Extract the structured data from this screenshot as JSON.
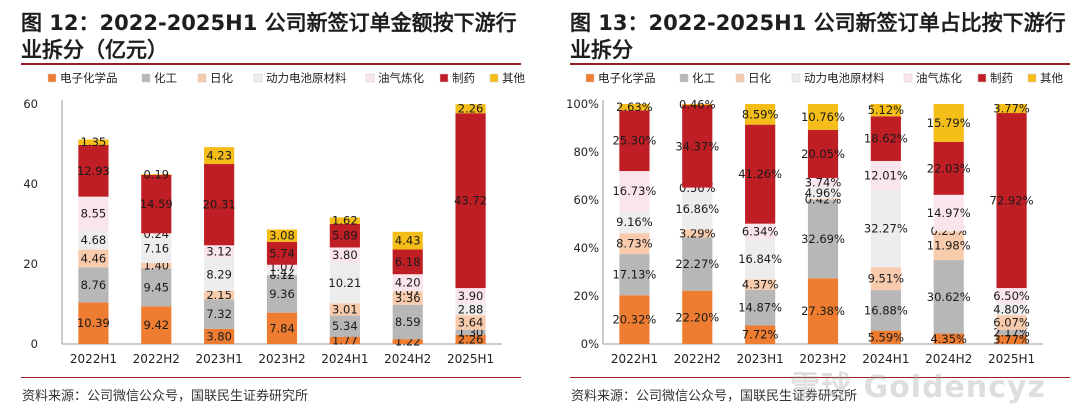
{
  "panels": [
    {
      "title": "图 12：2022-2025H1 公司新签订单金额按下游行业拆分（亿元）",
      "source": "资料来源：公司微信公众号，国联民生证券研究所"
    },
    {
      "title": "图 13：2022-2025H1 公司新签订单占比按下游行业拆分",
      "source": "资料来源：公司微信公众号，国联民生证券研究所"
    }
  ],
  "watermark": "雪球 Goldencyz",
  "colors": {
    "电子化学品": "#ee7d31",
    "化工": "#b7b7b7",
    "日化": "#f8cbad",
    "动力电池原材料": "#ededed",
    "油气炼化": "#fbe5ec",
    "制药": "#be1e24",
    "其他": "#f4bd17"
  },
  "chart_data": [
    {
      "type": "bar",
      "stacked": true,
      "title": "图 12：2022-2025H1 公司新签订单金额按下游行业拆分（亿元）",
      "categories": [
        "2022H1",
        "2022H2",
        "2023H1",
        "2023H2",
        "2024H1",
        "2024H2",
        "2025H1"
      ],
      "series": [
        {
          "name": "电子化学品",
          "values": [
            10.39,
            9.42,
            3.8,
            7.84,
            1.77,
            1.22,
            2.26
          ]
        },
        {
          "name": "化工",
          "values": [
            8.76,
            9.45,
            7.32,
            9.36,
            5.34,
            8.59,
            1.3
          ]
        },
        {
          "name": "日化",
          "values": [
            4.46,
            1.4,
            2.15,
            0.12,
            3.01,
            3.36,
            3.64
          ]
        },
        {
          "name": "动力电池原材料",
          "values": [
            4.68,
            7.16,
            8.29,
            1.42,
            10.21,
            0.07,
            2.88
          ]
        },
        {
          "name": "油气炼化",
          "values": [
            8.55,
            0.24,
            3.12,
            1.07,
            3.8,
            4.2,
            3.9
          ]
        },
        {
          "name": "制药",
          "values": [
            12.93,
            14.59,
            20.31,
            5.74,
            5.89,
            6.18,
            43.72
          ]
        },
        {
          "name": "其他",
          "values": [
            1.35,
            0.19,
            4.23,
            3.08,
            1.62,
            4.43,
            2.26
          ]
        }
      ],
      "ylim": [
        0,
        60
      ],
      "yticks": [
        0,
        20,
        40,
        60
      ],
      "xlabel": "",
      "ylabel": "",
      "legend": "top"
    },
    {
      "type": "bar",
      "stacked": true,
      "percent": true,
      "title": "图 13：2022-2025H1 公司新签订单占比按下游行业拆分",
      "categories": [
        "2022H1",
        "2022H2",
        "2023H1",
        "2023H2",
        "2024H1",
        "2024H2",
        "2025H1"
      ],
      "series": [
        {
          "name": "电子化学品",
          "values": [
            20.32,
            22.2,
            7.72,
            27.38,
            5.59,
            4.35,
            3.77
          ]
        },
        {
          "name": "化工",
          "values": [
            17.13,
            22.27,
            14.87,
            32.69,
            16.88,
            30.62,
            2.17
          ]
        },
        {
          "name": "日化",
          "values": [
            8.73,
            3.29,
            4.37,
            0.42,
            9.51,
            11.98,
            6.07
          ]
        },
        {
          "name": "动力电池原材料",
          "values": [
            9.16,
            16.86,
            16.84,
            4.96,
            32.27,
            0.25,
            4.8
          ]
        },
        {
          "name": "油气炼化",
          "values": [
            16.73,
            0.56,
            6.34,
            3.74,
            12.01,
            14.97,
            6.5
          ]
        },
        {
          "name": "制药",
          "values": [
            25.3,
            34.37,
            41.26,
            20.05,
            18.62,
            22.03,
            72.92
          ]
        },
        {
          "name": "其他",
          "values": [
            2.63,
            0.46,
            8.59,
            10.76,
            5.12,
            15.79,
            3.77
          ]
        }
      ],
      "ylim": [
        0,
        100
      ],
      "yticks": [
        "0%",
        "20%",
        "40%",
        "60%",
        "80%",
        "100%"
      ],
      "xlabel": "",
      "ylabel": "",
      "legend": "top"
    }
  ]
}
